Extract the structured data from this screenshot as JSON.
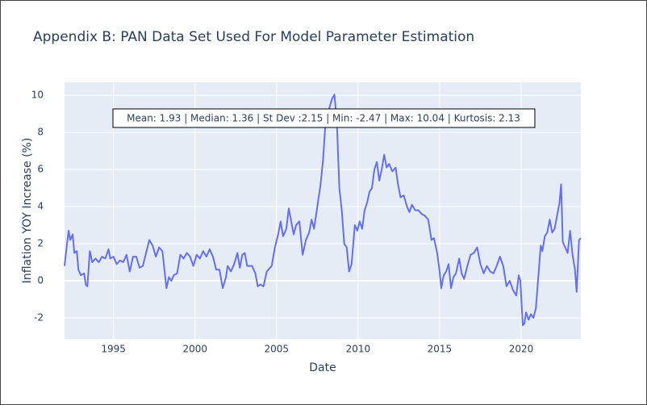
{
  "chart_data": {
    "type": "line",
    "title": "Appendix B: PAN Data Set Used For Model Parameter Estimation",
    "x_label": "Date",
    "y_label": "Inflation YOY Increase (%)",
    "annotation": "Mean: 1.93 | Median: 1.36 | St Dev :2.15 | Min: -2.47 | Max: 10.04 | Kurtosis: 2.13",
    "xlim": [
      1992.0,
      2023.66
    ],
    "xticks": [
      1995,
      2000,
      2005,
      2010,
      2015,
      2020
    ],
    "ylim": [
      -3.13,
      10.7
    ],
    "yticks": [
      -2,
      0,
      2,
      4,
      6,
      8,
      10
    ],
    "grid": true,
    "series": [
      {
        "name": "Inflation",
        "color": "#636efa",
        "x": [
          1992.0,
          1992.1,
          1992.25,
          1992.35,
          1992.5,
          1992.6,
          1992.75,
          1992.85,
          1993.0,
          1993.2,
          1993.3,
          1993.4,
          1993.55,
          1993.7,
          1993.9,
          1994.1,
          1994.3,
          1994.5,
          1994.7,
          1994.8,
          1995.0,
          1995.2,
          1995.4,
          1995.6,
          1995.8,
          1996.0,
          1996.2,
          1996.4,
          1996.6,
          1996.8,
          1997.0,
          1997.2,
          1997.4,
          1997.6,
          1997.8,
          1998.0,
          1998.1,
          1998.25,
          1998.4,
          1998.55,
          1998.7,
          1998.9,
          1999.1,
          1999.3,
          1999.5,
          1999.7,
          1999.9,
          2000.1,
          2000.3,
          2000.5,
          2000.7,
          2000.9,
          2001.1,
          2001.3,
          2001.5,
          2001.7,
          2001.9,
          2002.0,
          2002.2,
          2002.4,
          2002.6,
          2002.75,
          2002.9,
          2003.05,
          2003.2,
          2003.5,
          2003.7,
          2003.85,
          2004.0,
          2004.2,
          2004.4,
          2004.7,
          2004.9,
          2005.1,
          2005.25,
          2005.4,
          2005.6,
          2005.75,
          2005.9,
          2006.05,
          2006.2,
          2006.4,
          2006.6,
          2006.8,
          2007.0,
          2007.15,
          2007.3,
          2007.5,
          2007.7,
          2007.85,
          2008.0,
          2008.2,
          2008.4,
          2008.55,
          2008.7,
          2008.85,
          2009.0,
          2009.15,
          2009.3,
          2009.45,
          2009.6,
          2009.8,
          2009.95,
          2010.1,
          2010.25,
          2010.4,
          2010.55,
          2010.7,
          2010.85,
          2011.0,
          2011.15,
          2011.3,
          2011.45,
          2011.6,
          2011.75,
          2011.9,
          2012.1,
          2012.3,
          2012.45,
          2012.6,
          2012.8,
          2013.0,
          2013.15,
          2013.3,
          2013.5,
          2013.7,
          2013.9,
          2014.1,
          2014.3,
          2014.5,
          2014.65,
          2014.85,
          2015.0,
          2015.1,
          2015.25,
          2015.4,
          2015.55,
          2015.7,
          2015.85,
          2016.0,
          2016.2,
          2016.35,
          2016.5,
          2016.7,
          2016.9,
          2017.1,
          2017.3,
          2017.5,
          2017.7,
          2017.9,
          2018.1,
          2018.3,
          2018.5,
          2018.7,
          2018.9,
          2019.1,
          2019.3,
          2019.5,
          2019.7,
          2019.85,
          2019.95,
          2020.1,
          2020.2,
          2020.3,
          2020.45,
          2020.6,
          2020.75,
          2020.9,
          2021.05,
          2021.2,
          2021.3,
          2021.45,
          2021.6,
          2021.75,
          2021.9,
          2022.05,
          2022.2,
          2022.35,
          2022.45,
          2022.55,
          2022.7,
          2022.85,
          2023.0,
          2023.15,
          2023.3,
          2023.4,
          2023.55,
          2023.66
        ],
        "values": [
          0.8,
          1.6,
          2.7,
          2.2,
          2.5,
          1.5,
          1.6,
          0.6,
          0.3,
          0.4,
          -0.2,
          -0.3,
          1.6,
          1.0,
          1.2,
          1.0,
          1.3,
          1.2,
          1.7,
          1.2,
          1.3,
          0.9,
          1.1,
          1.0,
          1.4,
          0.5,
          1.3,
          1.3,
          0.7,
          0.8,
          1.5,
          2.2,
          1.9,
          1.3,
          1.8,
          1.6,
          0.8,
          -0.4,
          0.2,
          0.0,
          0.3,
          0.4,
          1.4,
          1.2,
          1.5,
          1.3,
          0.8,
          1.4,
          1.2,
          1.6,
          1.3,
          1.7,
          1.3,
          0.6,
          0.6,
          -0.4,
          0.2,
          0.8,
          0.5,
          0.9,
          1.5,
          0.7,
          1.4,
          1.5,
          0.8,
          0.8,
          0.4,
          -0.3,
          -0.2,
          -0.3,
          0.5,
          0.8,
          1.8,
          2.5,
          3.2,
          2.4,
          2.8,
          3.9,
          3.2,
          2.5,
          3.0,
          3.2,
          1.4,
          2.2,
          2.6,
          3.3,
          2.8,
          4.0,
          5.2,
          6.5,
          8.5,
          9.2,
          9.8,
          10.04,
          8.5,
          5.0,
          3.8,
          2.0,
          1.8,
          0.5,
          0.9,
          3.0,
          2.7,
          3.2,
          2.8,
          3.8,
          4.2,
          4.8,
          5.0,
          6.0,
          6.4,
          5.4,
          6.0,
          6.8,
          6.1,
          6.3,
          5.9,
          6.1,
          5.2,
          4.5,
          4.6,
          4.0,
          3.7,
          4.1,
          3.8,
          3.8,
          3.6,
          3.5,
          3.3,
          2.2,
          2.3,
          1.5,
          0.5,
          -0.4,
          0.3,
          0.5,
          0.9,
          -0.4,
          0.2,
          0.4,
          1.2,
          0.4,
          0.1,
          0.8,
          1.4,
          1.5,
          1.8,
          0.9,
          0.4,
          0.8,
          0.5,
          0.4,
          0.8,
          1.3,
          0.8,
          -0.3,
          0.0,
          -0.5,
          -0.8,
          0.3,
          0.0,
          -2.4,
          -2.3,
          -1.7,
          -2.1,
          -1.8,
          -2.0,
          -1.5,
          0.2,
          1.9,
          1.6,
          2.4,
          2.6,
          3.3,
          2.6,
          2.8,
          3.5,
          4.2,
          5.2,
          2.1,
          1.8,
          1.5,
          2.7,
          1.4,
          0.6,
          -0.6,
          2.2,
          2.3
        ]
      }
    ]
  }
}
